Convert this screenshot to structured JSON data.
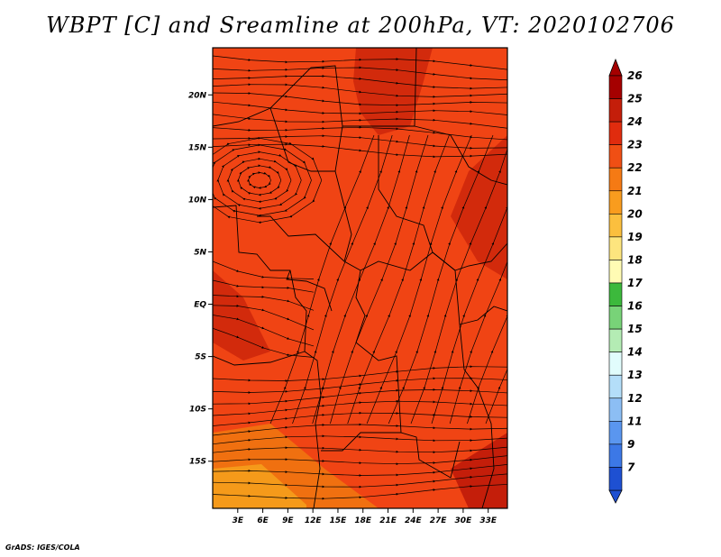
{
  "title": "WBPT [C] and Sreamline at 200hPa, VT: 2020102706",
  "credit": "GrADS: IGES/COLA",
  "map": {
    "lat_labels": [
      "20N",
      "15N",
      "10N",
      "5N",
      "EQ",
      "5S",
      "10S",
      "15S"
    ],
    "lat_values": [
      20,
      15,
      10,
      5,
      0,
      -5,
      -10,
      -15
    ],
    "lon_labels": [
      "3E",
      "6E",
      "9E",
      "12E",
      "15E",
      "18E",
      "21E",
      "24E",
      "27E",
      "30E",
      "33E"
    ],
    "lon_values": [
      3,
      6,
      9,
      12,
      15,
      18,
      21,
      24,
      27,
      30,
      33
    ],
    "field_colors": {
      "base": "#f04414",
      "warm": "#d22a0c",
      "hot": "#c41e0a",
      "cool": "#f07010",
      "coolest": "#f59a1a"
    },
    "line_color": "#000000"
  },
  "colorbar": {
    "labels": [
      "26",
      "25",
      "24",
      "23",
      "22",
      "21",
      "20",
      "19",
      "18",
      "17",
      "16",
      "15",
      "14",
      "13",
      "12",
      "11",
      "9",
      "7"
    ],
    "colors": [
      "#a50000",
      "#c41e0a",
      "#e02c0e",
      "#f04f14",
      "#f57a14",
      "#f99c1e",
      "#fbbf3e",
      "#fde57e",
      "#fffbb4",
      "#3cb93c",
      "#78d378",
      "#b4ecb4",
      "#e1fcfc",
      "#b4def9",
      "#8cbef4",
      "#5a96ef",
      "#3c78e6",
      "#1e50d2"
    ],
    "top_arrow_color": "#a50000",
    "bottom_arrow_color": "#1e50d2"
  }
}
